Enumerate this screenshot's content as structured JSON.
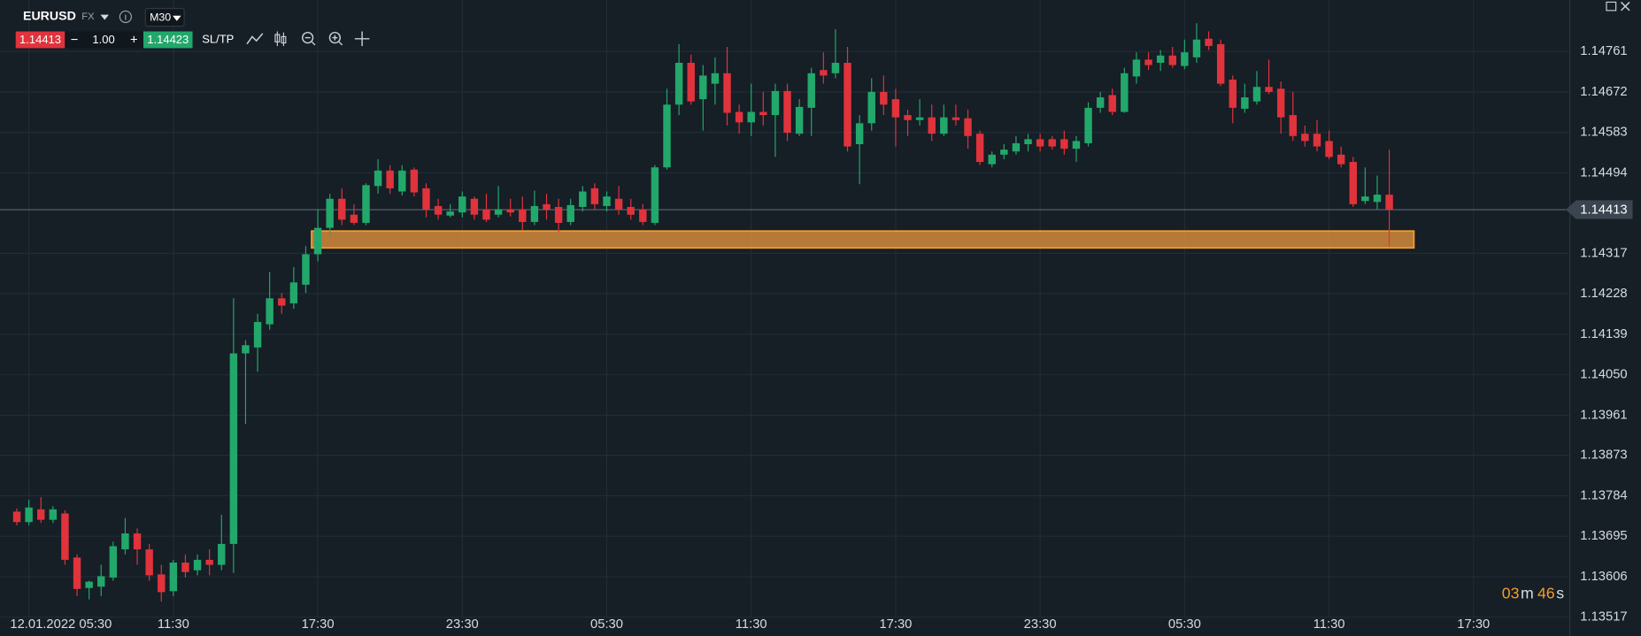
{
  "toolbar": {
    "symbol": "EURUSD",
    "market": "FX",
    "timeframe": "M30",
    "bid": "1.14413",
    "minus": "−",
    "lot": "1.00",
    "plus": "+",
    "ask": "1.14423",
    "sltp": "SL/TP"
  },
  "timer": [
    "03",
    "m",
    "46",
    "s"
  ],
  "chart_data": {
    "type": "candlestick",
    "up_color": "#22a86b",
    "down_color": "#e0333c",
    "grid": true,
    "open": [
      1.13749,
      1.13726,
      1.13754,
      1.13731,
      1.13745,
      1.13648,
      1.13581,
      1.13584,
      1.13604,
      1.13666,
      1.13701,
      1.13666,
      1.13611,
      1.13574,
      1.13637,
      1.1362,
      1.13643,
      1.13632,
      1.13678,
      1.14097,
      1.1411,
      1.14161,
      1.14218,
      1.14207,
      1.14248,
      1.14315,
      1.14373,
      1.14437,
      1.14402,
      1.14384,
      1.14465,
      1.14499,
      1.14453,
      1.14501,
      1.1446,
      1.14421,
      1.144,
      1.14407,
      1.14437,
      1.14414,
      1.14402,
      1.14414,
      1.14414,
      1.14386,
      1.14425,
      1.14419,
      1.14386,
      1.14419,
      1.1446,
      1.14421,
      1.14437,
      1.14419,
      1.14414,
      1.14384,
      1.14506,
      1.14644,
      1.14736,
      1.14656,
      1.1469,
      1.14713,
      1.14628,
      1.14605,
      1.14628,
      1.14621,
      1.14674,
      1.1458,
      1.14637,
      1.1472,
      1.14713,
      1.14736,
      1.14557,
      1.14603,
      1.14672,
      1.14656,
      1.14621,
      1.1461,
      1.14616,
      1.1458,
      1.14616,
      1.14614,
      1.1458,
      1.14513,
      1.14534,
      1.14541,
      1.14557,
      1.14568,
      1.14568,
      1.14568,
      1.14547,
      1.14559,
      1.14637,
      1.14665,
      1.14628,
      1.14706,
      1.14743,
      1.14736,
      1.14752,
      1.14729,
      1.14748,
      1.14789,
      1.14777,
      1.14699,
      1.14635,
      1.14651,
      1.14683,
      1.14679,
      1.14621,
      1.1458,
      1.1458,
      1.14564,
      1.14534,
      1.14518,
      1.14432,
      1.1443,
      1.14446
    ],
    "high": [
      1.13756,
      1.13775,
      1.13781,
      1.13761,
      1.13752,
      1.13655,
      1.13597,
      1.13632,
      1.13683,
      1.13735,
      1.13712,
      1.13678,
      1.13632,
      1.13643,
      1.13655,
      1.13655,
      1.13666,
      1.13742,
      1.14218,
      1.14126,
      1.14184,
      1.14276,
      1.1423,
      1.14287,
      1.14333,
      1.14414,
      1.14448,
      1.1446,
      1.14425,
      1.14471,
      1.14524,
      1.14511,
      1.14511,
      1.14506,
      1.14471,
      1.14437,
      1.14425,
      1.14453,
      1.14442,
      1.14448,
      1.14465,
      1.14437,
      1.14442,
      1.14455,
      1.14448,
      1.14437,
      1.14437,
      1.14465,
      1.14471,
      1.14453,
      1.14465,
      1.14437,
      1.14425,
      1.14511,
      1.14679,
      1.14777,
      1.14754,
      1.14731,
      1.14748,
      1.14771,
      1.14644,
      1.1469,
      1.14672,
      1.1469,
      1.1469,
      1.14656,
      1.14725,
      1.14759,
      1.1481,
      1.14771,
      1.14621,
      1.14702,
      1.14708,
      1.14679,
      1.14633,
      1.14656,
      1.14644,
      1.14644,
      1.14644,
      1.14633,
      1.14587,
      1.14541,
      1.14557,
      1.14575,
      1.1458,
      1.1458,
      1.14575,
      1.14587,
      1.14575,
      1.14649,
      1.14672,
      1.14679,
      1.14725,
      1.14759,
      1.14759,
      1.14764,
      1.14771,
      1.14787,
      1.14823,
      1.14805,
      1.14787,
      1.14708,
      1.1469,
      1.14718,
      1.14743,
      1.14695,
      1.14672,
      1.14598,
      1.1461,
      1.14587,
      1.14552,
      1.14529,
      1.14506,
      1.14488,
      1.14545
    ],
    "low": [
      1.13719,
      1.13719,
      1.13724,
      1.13724,
      1.13632,
      1.13563,
      1.13556,
      1.13563,
      1.13597,
      1.13655,
      1.13632,
      1.13597,
      1.13551,
      1.13563,
      1.13604,
      1.13609,
      1.13609,
      1.1362,
      1.13614,
      1.13942,
      1.14057,
      1.14149,
      1.14184,
      1.14195,
      1.1423,
      1.14299,
      1.14356,
      1.14379,
      1.14379,
      1.14379,
      1.14448,
      1.14448,
      1.14444,
      1.14442,
      1.14396,
      1.14391,
      1.14396,
      1.14396,
      1.14391,
      1.14386,
      1.14396,
      1.14398,
      1.14368,
      1.14379,
      1.14391,
      1.14363,
      1.14379,
      1.14409,
      1.14414,
      1.14409,
      1.14402,
      1.14391,
      1.14379,
      1.14379,
      1.14501,
      1.14621,
      1.14644,
      1.14587,
      1.14644,
      1.14598,
      1.1458,
      1.14575,
      1.14598,
      1.14529,
      1.14564,
      1.14575,
      1.14575,
      1.1469,
      1.14702,
      1.14541,
      1.14469,
      1.14587,
      1.14621,
      1.14552,
      1.14575,
      1.14598,
      1.14564,
      1.14575,
      1.14598,
      1.14547,
      1.14511,
      1.14506,
      1.14524,
      1.14534,
      1.14541,
      1.14541,
      1.14545,
      1.14534,
      1.14518,
      1.14552,
      1.14626,
      1.14621,
      1.14626,
      1.1469,
      1.1472,
      1.14718,
      1.14725,
      1.14722,
      1.14736,
      1.14764,
      1.14685,
      1.14603,
      1.14626,
      1.14644,
      1.14667,
      1.1458,
      1.14564,
      1.14552,
      1.14541,
      1.14524,
      1.14506,
      1.14419,
      1.14425,
      1.14414,
      1.14331
    ],
    "close": [
      1.13726,
      1.13758,
      1.13731,
      1.13754,
      1.13643,
      1.13579,
      1.13595,
      1.13607,
      1.13673,
      1.13701,
      1.13666,
      1.13609,
      1.13572,
      1.13637,
      1.13616,
      1.13643,
      1.13632,
      1.13678,
      1.14097,
      1.14115,
      1.14166,
      1.14218,
      1.14202,
      1.14253,
      1.14315,
      1.14373,
      1.14437,
      1.14391,
      1.14384,
      1.14467,
      1.14499,
      1.1446,
      1.14499,
      1.14451,
      1.14414,
      1.14402,
      1.14409,
      1.14442,
      1.14402,
      1.14391,
      1.14414,
      1.14407,
      1.14386,
      1.14421,
      1.14414,
      1.14384,
      1.14423,
      1.14453,
      1.14425,
      1.14442,
      1.14414,
      1.14402,
      1.14386,
      1.14506,
      1.14644,
      1.14736,
      1.14651,
      1.14708,
      1.14713,
      1.14626,
      1.14605,
      1.14628,
      1.14621,
      1.14674,
      1.14582,
      1.14639,
      1.14713,
      1.14708,
      1.14736,
      1.14552,
      1.14603,
      1.14672,
      1.14644,
      1.14616,
      1.1461,
      1.14616,
      1.1458,
      1.14616,
      1.1461,
      1.14575,
      1.14518,
      1.14534,
      1.14545,
      1.14559,
      1.14568,
      1.14552,
      1.14552,
      1.14547,
      1.14564,
      1.14637,
      1.1466,
      1.14628,
      1.14713,
      1.14743,
      1.14731,
      1.14752,
      1.14731,
      1.14759,
      1.14787,
      1.14773,
      1.1469,
      1.14637,
      1.1466,
      1.14683,
      1.14672,
      1.14616,
      1.14575,
      1.14564,
      1.14552,
      1.14529,
      1.14513,
      1.14425,
      1.14442,
      1.14446,
      1.14413
    ],
    "last_price": 1.14413,
    "zone": {
      "low": 1.14329,
      "high": 1.14366
    },
    "ylim": [
      1.13517,
      1.14874
    ],
    "yticks": [
      1.14761,
      1.14672,
      1.14583,
      1.14494,
      1.14317,
      1.14228,
      1.14139,
      {
        "value": 1.1405,
        "label": "1.14050"
      },
      1.13961,
      1.13873,
      1.13784,
      1.13695,
      1.13606,
      1.13517
    ],
    "xlim": [
      -1.4,
      129
    ],
    "xticks": [
      {
        "value": 1,
        "label": "12.01.2022 05:30"
      },
      {
        "value": 13,
        "label": "11:30"
      },
      {
        "value": 25,
        "label": "17:30"
      },
      {
        "value": 37,
        "label": "23:30"
      },
      {
        "value": 49,
        "label": "05:30"
      },
      {
        "value": 61,
        "label": "11:30"
      },
      {
        "value": 73,
        "label": "17:30"
      },
      {
        "value": 85,
        "label": "23:30"
      },
      {
        "value": 97,
        "label": "05:30"
      },
      {
        "value": 109,
        "label": "11:30"
      },
      {
        "value": 121,
        "label": "17:30"
      }
    ]
  }
}
